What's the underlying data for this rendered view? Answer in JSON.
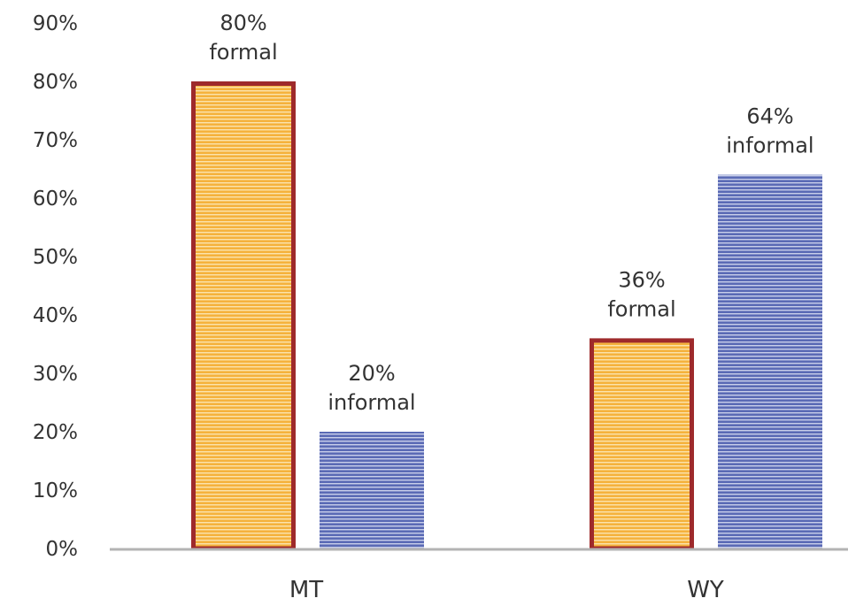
{
  "chart_data": {
    "type": "bar",
    "categories": [
      "MT",
      "WY"
    ],
    "series": [
      {
        "values": [
          80,
          36
        ],
        "labels": [
          "80%",
          "36%"
        ],
        "sublabel": "formal",
        "fill": "#f5b23c",
        "stripe": "#fbe3ad",
        "border": "#9e2a2b"
      },
      {
        "values": [
          20,
          64
        ],
        "labels": [
          "20%",
          "64%"
        ],
        "sublabel": "informal",
        "fill": "#5a6ab5",
        "stripe": "#c9cfea",
        "border": "none"
      }
    ],
    "y_ticks": [
      "0%",
      "10%",
      "20%",
      "30%",
      "40%",
      "50%",
      "60%",
      "70%",
      "80%",
      "90%"
    ],
    "ylim": [
      0,
      90
    ],
    "grid": false,
    "axis_color": "#b3b3b3"
  }
}
